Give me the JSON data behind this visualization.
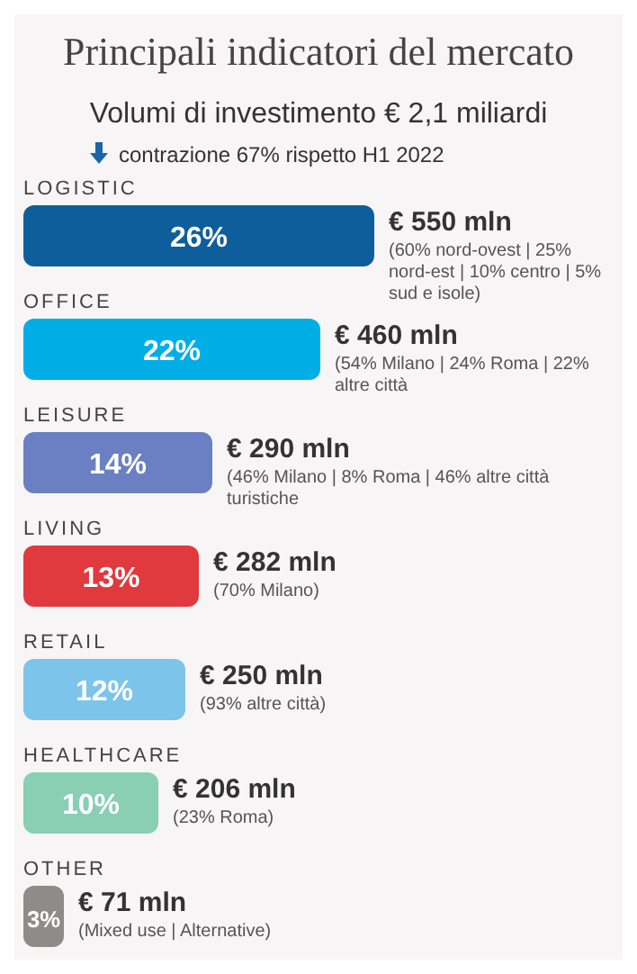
{
  "chart_data": {
    "type": "bar",
    "orientation": "horizontal",
    "title": "Principali indicatori del mercato",
    "subtitle": "Volumi di investimento € 2,1 miliardi",
    "categories": [
      "LOGISTIC",
      "OFFICE",
      "LEISURE",
      "LIVING",
      "RETAIL",
      "HEALTHCARE",
      "OTHER"
    ],
    "values": [
      26,
      22,
      14,
      13,
      12,
      10,
      3
    ],
    "value_labels": [
      "26%",
      "22%",
      "14%",
      "13%",
      "12%",
      "10%",
      "3%"
    ],
    "colors": [
      "#0f5e9c",
      "#00aee6",
      "#6a80c2",
      "#e0393e",
      "#7cc4ea",
      "#88cfb4",
      "#8e8c8b"
    ],
    "xlim": [
      0,
      26
    ],
    "annotations": [
      "contrazione 67% rispetto H1 2022",
      {
        "text": "€ 550 mln",
        "x": 26,
        "y": "LOGISTIC"
      },
      {
        "text": "(60% nord-ovest | 25% nord-est | 10% centro | 5% sud e isole)",
        "x": 26,
        "y": "LOGISTIC"
      },
      {
        "text": "€ 460 mln",
        "x": 22,
        "y": "OFFICE"
      },
      {
        "text": "(54% Milano | 24% Roma | 22% altre città",
        "x": 22,
        "y": "OFFICE"
      },
      {
        "text": "€ 290 mln",
        "x": 14,
        "y": "LEISURE"
      },
      {
        "text": "(46% Milano | 8% Roma | 46% altre città turistiche",
        "x": 14,
        "y": "LEISURE"
      },
      {
        "text": "€ 282 mln",
        "x": 13,
        "y": "LIVING"
      },
      {
        "text": "(70% Milano)",
        "x": 13,
        "y": "LIVING"
      },
      {
        "text": "€ 250 mln",
        "x": 12,
        "y": "RETAIL"
      },
      {
        "text": "(93% altre città)",
        "x": 12,
        "y": "RETAIL"
      },
      {
        "text": "€ 206 mln",
        "x": 10,
        "y": "HEALTHCARE"
      },
      {
        "text": "(23% Roma)",
        "x": 10,
        "y": "HEALTHCARE"
      },
      {
        "text": "€ 71 mln",
        "x": 3,
        "y": "OTHER"
      },
      {
        "text": "(Mixed use | Alternative)",
        "x": 3,
        "y": "OTHER"
      }
    ]
  }
}
